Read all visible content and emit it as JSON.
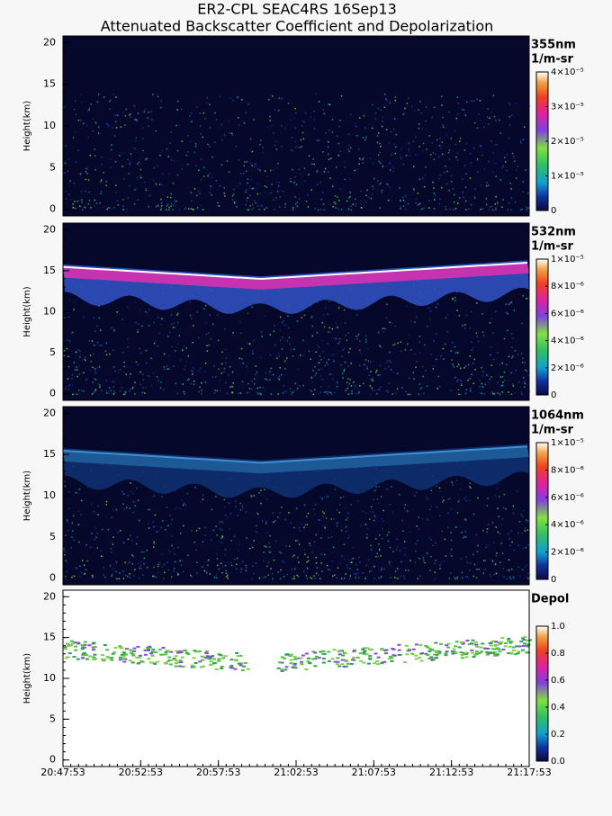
{
  "title": "ER2-CPL SEAC4RS 16Sep13",
  "subtitle": "Attenuated Backscatter Coefficient and Depolarization",
  "chart_data": [
    {
      "type": "curtain",
      "label": "355nm",
      "units": "1/m-sr",
      "ylabel": "Height(km)",
      "ylim": [
        -0.8,
        20.8
      ],
      "yticks": [
        0,
        5,
        10,
        15,
        20
      ],
      "colorbar": {
        "lim": [
          0,
          4e-05
        ],
        "ticks": [
          0,
          {
            "value": 1e-05,
            "label": "1×10⁻⁵"
          },
          {
            "value": 2e-05,
            "label": "2×10⁻⁵"
          },
          {
            "value": 3e-05,
            "label": "3×10⁻⁵"
          },
          {
            "value": 4e-05,
            "label": "4×10⁻⁵"
          }
        ]
      }
    },
    {
      "type": "curtain",
      "label": "532nm",
      "units": "1/m-sr",
      "ylabel": "Height(km)",
      "ylim": [
        -0.8,
        20.8
      ],
      "yticks": [
        0,
        5,
        10,
        15,
        20
      ],
      "colorbar": {
        "lim": [
          0,
          1e-05
        ],
        "ticks": [
          0,
          {
            "value": 2e-06,
            "label": "2×10⁻⁶"
          },
          {
            "value": 4e-06,
            "label": "4×10⁻⁶"
          },
          {
            "value": 6e-06,
            "label": "6×10⁻⁶"
          },
          {
            "value": 8e-06,
            "label": "8×10⁻⁶"
          },
          {
            "value": 1e-05,
            "label": "1×10⁻⁵"
          }
        ]
      }
    },
    {
      "type": "curtain",
      "label": "1064nm",
      "units": "1/m-sr",
      "ylabel": "Height(km)",
      "ylim": [
        -0.8,
        20.8
      ],
      "yticks": [
        0,
        5,
        10,
        15,
        20
      ],
      "colorbar": {
        "lim": [
          0,
          1e-05
        ],
        "ticks": [
          0,
          {
            "value": 2e-06,
            "label": "2×10⁻⁶"
          },
          {
            "value": 4e-06,
            "label": "4×10⁻⁶"
          },
          {
            "value": 6e-06,
            "label": "6×10⁻⁶"
          },
          {
            "value": 8e-06,
            "label": "8×10⁻⁶"
          },
          {
            "value": 1e-05,
            "label": "1×10⁻⁵"
          }
        ]
      }
    },
    {
      "type": "depol",
      "label": "Depol",
      "ylabel": "Height(km)",
      "ylim": [
        -0.8,
        20.8
      ],
      "yticks": [
        0,
        5,
        10,
        15,
        20
      ],
      "colorbar": {
        "lim": [
          0,
          1
        ],
        "ticks": [
          {
            "value": 0,
            "label": "0.0"
          },
          0.2,
          0.4,
          0.6,
          0.8,
          {
            "value": 1,
            "label": "1.0"
          }
        ]
      },
      "xlim": [
        "20:47:53",
        "21:17:53"
      ],
      "xticks": [
        "20:47:53",
        "20:52:53",
        "20:57:53",
        "21:02:53",
        "21:07:53",
        "21:12:53",
        "21:17:53"
      ]
    }
  ]
}
